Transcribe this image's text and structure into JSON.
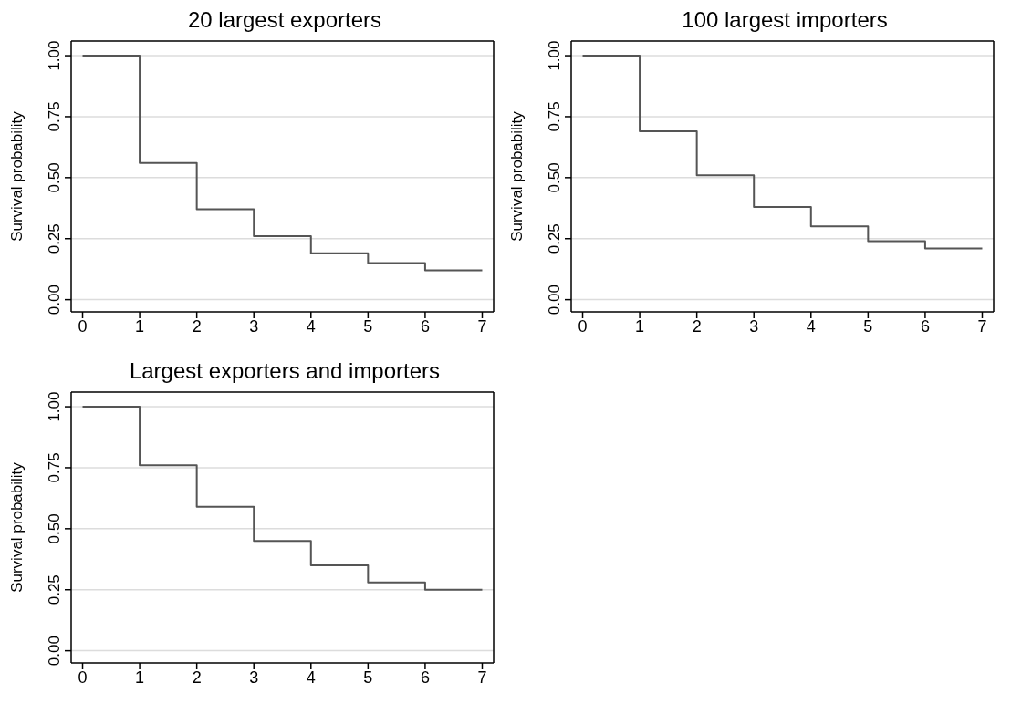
{
  "chart_data": [
    {
      "type": "step",
      "title": "20 largest exporters",
      "ylabel": "Survival probability",
      "x": [
        0,
        1,
        2,
        3,
        4,
        5,
        6,
        7
      ],
      "series": [
        {
          "color": "#555555",
          "values": [
            1,
            0.56,
            0.37,
            0.26,
            0.19,
            0.15,
            0.12,
            0.12
          ]
        }
      ],
      "xlim": [
        -0.2,
        7.2
      ],
      "xticks": [
        0,
        1,
        2,
        3,
        4,
        5,
        6,
        7
      ],
      "ylim": [
        -0.05,
        1.06
      ],
      "yticks": [
        {
          "value": 0,
          "label": "0.00"
        },
        {
          "value": 0.25,
          "label": "0.25"
        },
        {
          "value": 0.5,
          "label": "0.50"
        },
        {
          "value": 0.75,
          "label": "0.75"
        },
        {
          "value": 1,
          "label": "1.00"
        }
      ],
      "grid": "y",
      "marker": "none"
    },
    {
      "type": "step",
      "title": "100 largest importers",
      "ylabel": "Survival probability",
      "x": [
        0,
        1,
        2,
        3,
        4,
        5,
        6,
        7
      ],
      "series": [
        {
          "color": "#555555",
          "values": [
            1,
            0.69,
            0.51,
            0.38,
            0.3,
            0.24,
            0.21,
            0.21
          ]
        }
      ],
      "xlim": [
        -0.2,
        7.2
      ],
      "xticks": [
        0,
        1,
        2,
        3,
        4,
        5,
        6,
        7
      ],
      "ylim": [
        -0.05,
        1.06
      ],
      "yticks": [
        {
          "value": 0,
          "label": "0.00"
        },
        {
          "value": 0.25,
          "label": "0.25"
        },
        {
          "value": 0.5,
          "label": "0.50"
        },
        {
          "value": 0.75,
          "label": "0.75"
        },
        {
          "value": 1,
          "label": "1.00"
        }
      ],
      "grid": "y",
      "marker": "none"
    },
    {
      "type": "step",
      "title": "Largest exporters and importers",
      "ylabel": "Survival probability",
      "x": [
        0,
        1,
        2,
        3,
        4,
        5,
        6,
        7
      ],
      "series": [
        {
          "color": "#555555",
          "values": [
            1,
            0.76,
            0.59,
            0.45,
            0.35,
            0.28,
            0.25,
            0.25
          ]
        }
      ],
      "xlim": [
        -0.2,
        7.2
      ],
      "xticks": [
        0,
        1,
        2,
        3,
        4,
        5,
        6,
        7
      ],
      "ylim": [
        -0.05,
        1.06
      ],
      "yticks": [
        {
          "value": 0,
          "label": "0.00"
        },
        {
          "value": 0.25,
          "label": "0.25"
        },
        {
          "value": 0.5,
          "label": "0.50"
        },
        {
          "value": 0.75,
          "label": "0.75"
        },
        {
          "value": 1,
          "label": "1.00"
        }
      ],
      "grid": "y",
      "marker": "none"
    }
  ]
}
